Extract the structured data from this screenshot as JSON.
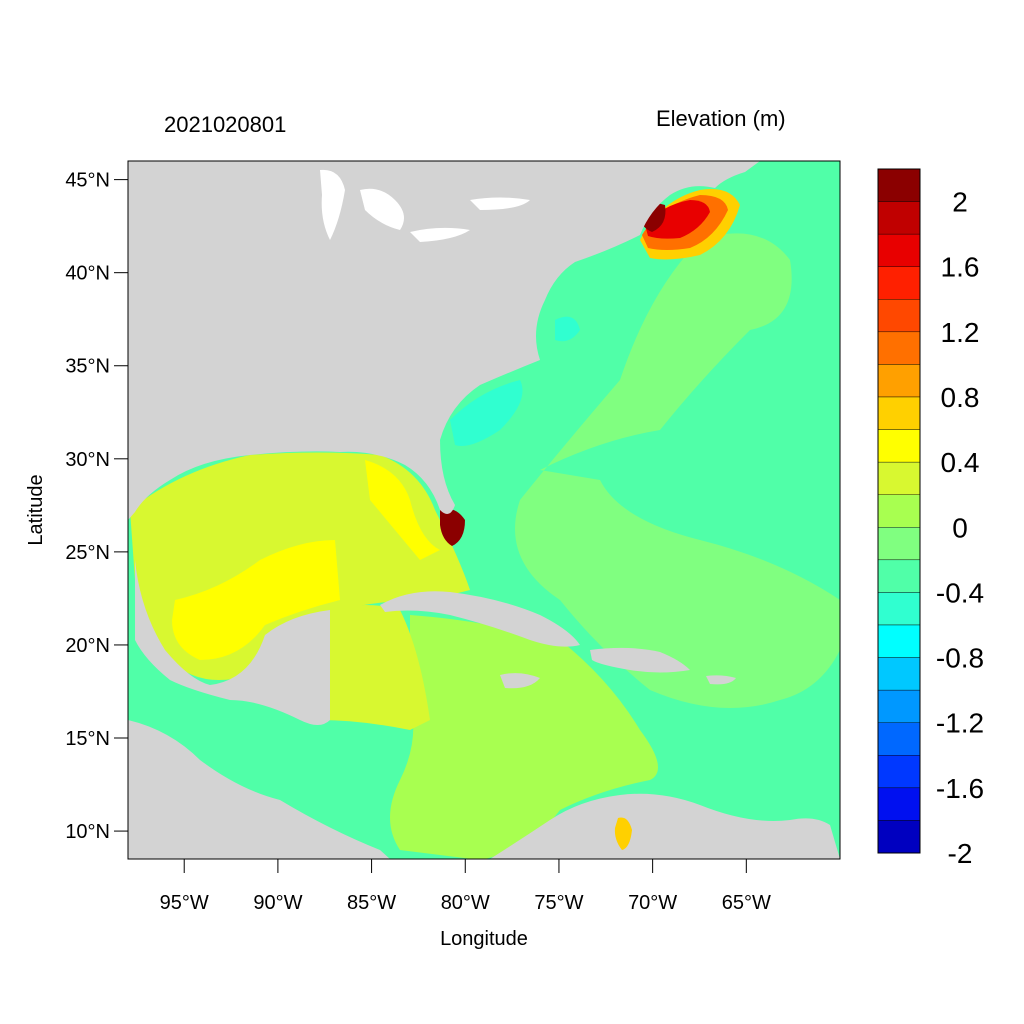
{
  "figure": {
    "date_label": "2021020801",
    "variable_label": "Elevation (m)"
  },
  "axes": {
    "xlabel": "Longitude",
    "ylabel": "Latitude",
    "xticks": [
      "95°W",
      "90°W",
      "85°W",
      "80°W",
      "75°W",
      "70°W",
      "65°W"
    ],
    "xtick_values": [
      -95,
      -90,
      -85,
      -80,
      -75,
      -70,
      -65
    ],
    "yticks": [
      "45°N",
      "40°N",
      "35°N",
      "30°N",
      "25°N",
      "20°N",
      "15°N",
      "10°N"
    ],
    "ytick_values": [
      45,
      40,
      35,
      30,
      25,
      20,
      15,
      10
    ],
    "xlim": [
      -98,
      -60
    ],
    "ylim": [
      8.5,
      46
    ]
  },
  "colorbar": {
    "labels": [
      "2",
      "1.6",
      "1.2",
      "0.8",
      "0.4",
      "0",
      "-0.4",
      "-0.8",
      "-1.2",
      "-1.6",
      "-2"
    ],
    "colors": [
      "#8b0000",
      "#c00000",
      "#e80000",
      "#ff2000",
      "#ff4800",
      "#ff7000",
      "#ffa000",
      "#ffd000",
      "#ffff00",
      "#d8f830",
      "#a8ff50",
      "#80ff80",
      "#50ffa8",
      "#30ffd0",
      "#00ffff",
      "#00c8ff",
      "#0098ff",
      "#0068ff",
      "#0038ff",
      "#0010f0",
      "#0000c0"
    ],
    "land_color": "#d3d3d3"
  }
}
